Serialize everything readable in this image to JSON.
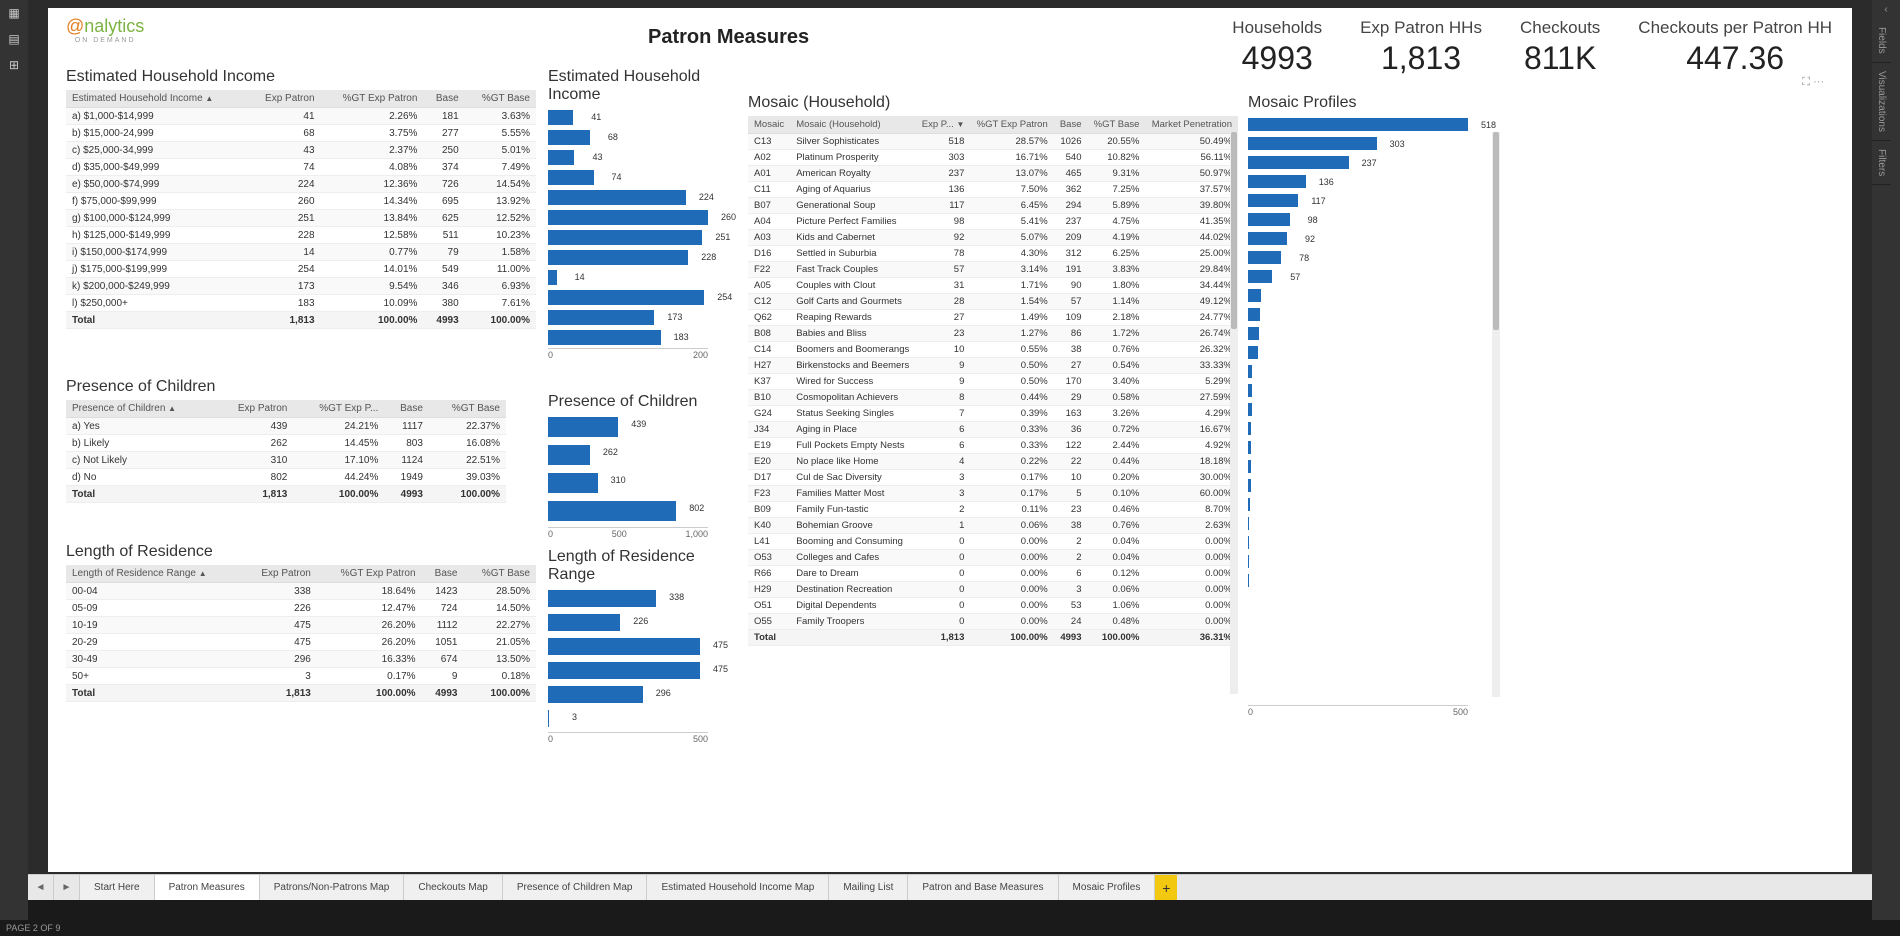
{
  "brand": {
    "a": "@",
    "name": "nalytics",
    "sub": "ON DEMAND"
  },
  "title": "Patron Measures",
  "kpis": [
    {
      "l": "Households",
      "v": "4993"
    },
    {
      "l": "Exp Patron HHs",
      "v": "1,813"
    },
    {
      "l": "Checkouts",
      "v": "811K"
    },
    {
      "l": "Checkouts per Patron HH",
      "v": "447.36"
    }
  ],
  "income": {
    "title": "Estimated Household Income",
    "cols": [
      "Estimated Household Income",
      "Exp Patron",
      "%GT Exp Patron",
      "Base",
      "%GT Base"
    ],
    "rows": [
      [
        "a) $1,000-$14,999",
        "41",
        "2.26%",
        "181",
        "3.63%"
      ],
      [
        "b) $15,000-24,999",
        "68",
        "3.75%",
        "277",
        "5.55%"
      ],
      [
        "c) $25,000-34,999",
        "43",
        "2.37%",
        "250",
        "5.01%"
      ],
      [
        "d) $35,000-$49,999",
        "74",
        "4.08%",
        "374",
        "7.49%"
      ],
      [
        "e) $50,000-$74,999",
        "224",
        "12.36%",
        "726",
        "14.54%"
      ],
      [
        "f) $75,000-$99,999",
        "260",
        "14.34%",
        "695",
        "13.92%"
      ],
      [
        "g) $100,000-$124,999",
        "251",
        "13.84%",
        "625",
        "12.52%"
      ],
      [
        "h) $125,000-$149,999",
        "228",
        "12.58%",
        "511",
        "10.23%"
      ],
      [
        "i) $150,000-$174,999",
        "14",
        "0.77%",
        "79",
        "1.58%"
      ],
      [
        "j) $175,000-$199,999",
        "254",
        "14.01%",
        "549",
        "11.00%"
      ],
      [
        "k) $200,000-$249,999",
        "173",
        "9.54%",
        "346",
        "6.93%"
      ],
      [
        "l) $250,000+",
        "183",
        "10.09%",
        "380",
        "7.61%"
      ]
    ],
    "total": [
      "Total",
      "1,813",
      "100.00%",
      "4993",
      "100.00%"
    ],
    "chart": {
      "max": 260,
      "axis": [
        "0",
        "200"
      ],
      "values": [
        41,
        68,
        43,
        74,
        224,
        260,
        251,
        228,
        14,
        254,
        173,
        183
      ]
    }
  },
  "children": {
    "title": "Presence of Children",
    "cols": [
      "Presence of Children",
      "Exp Patron",
      "%GT Exp P...",
      "Base",
      "%GT Base"
    ],
    "rows": [
      [
        "a) Yes",
        "439",
        "24.21%",
        "1117",
        "22.37%"
      ],
      [
        "b) Likely",
        "262",
        "14.45%",
        "803",
        "16.08%"
      ],
      [
        "c) Not Likely",
        "310",
        "17.10%",
        "1124",
        "22.51%"
      ],
      [
        "d) No",
        "802",
        "44.24%",
        "1949",
        "39.03%"
      ]
    ],
    "total": [
      "Total",
      "1,813",
      "100.00%",
      "4993",
      "100.00%"
    ],
    "chart": {
      "max": 1000,
      "axis": [
        "0",
        "500",
        "1,000"
      ],
      "values": [
        439,
        262,
        310,
        802
      ]
    }
  },
  "residence": {
    "title": "Length of Residence",
    "chartTitle": "Length of Residence Range",
    "cols": [
      "Length of Residence Range",
      "Exp Patron",
      "%GT Exp Patron",
      "Base",
      "%GT Base"
    ],
    "rows": [
      [
        "00-04",
        "338",
        "18.64%",
        "1423",
        "28.50%"
      ],
      [
        "05-09",
        "226",
        "12.47%",
        "724",
        "14.50%"
      ],
      [
        "10-19",
        "475",
        "26.20%",
        "1112",
        "22.27%"
      ],
      [
        "20-29",
        "475",
        "26.20%",
        "1051",
        "21.05%"
      ],
      [
        "30-49",
        "296",
        "16.33%",
        "674",
        "13.50%"
      ],
      [
        "50+",
        "3",
        "0.17%",
        "9",
        "0.18%"
      ]
    ],
    "total": [
      "Total",
      "1,813",
      "100.00%",
      "4993",
      "100.00%"
    ],
    "chart": {
      "max": 500,
      "axis": [
        "0",
        "500"
      ],
      "values": [
        338,
        226,
        475,
        475,
        296,
        3
      ]
    }
  },
  "mosaic": {
    "title": "Mosaic (Household)",
    "profilesTitle": "Mosaic Profiles",
    "cols": [
      "Mosaic",
      "Mosaic (Household)",
      "Exp P...",
      "%GT Exp Patron",
      "Base",
      "%GT Base",
      "Market Penetration"
    ],
    "rows": [
      [
        "C13",
        "Silver Sophisticates",
        "518",
        "28.57%",
        "1026",
        "20.55%",
        "50.49%"
      ],
      [
        "A02",
        "Platinum Prosperity",
        "303",
        "16.71%",
        "540",
        "10.82%",
        "56.11%"
      ],
      [
        "A01",
        "American Royalty",
        "237",
        "13.07%",
        "465",
        "9.31%",
        "50.97%"
      ],
      [
        "C11",
        "Aging of Aquarius",
        "136",
        "7.50%",
        "362",
        "7.25%",
        "37.57%"
      ],
      [
        "B07",
        "Generational Soup",
        "117",
        "6.45%",
        "294",
        "5.89%",
        "39.80%"
      ],
      [
        "A04",
        "Picture Perfect Families",
        "98",
        "5.41%",
        "237",
        "4.75%",
        "41.35%"
      ],
      [
        "A03",
        "Kids and Cabernet",
        "92",
        "5.07%",
        "209",
        "4.19%",
        "44.02%"
      ],
      [
        "D16",
        "Settled in Suburbia",
        "78",
        "4.30%",
        "312",
        "6.25%",
        "25.00%"
      ],
      [
        "F22",
        "Fast Track Couples",
        "57",
        "3.14%",
        "191",
        "3.83%",
        "29.84%"
      ],
      [
        "A05",
        "Couples with Clout",
        "31",
        "1.71%",
        "90",
        "1.80%",
        "34.44%"
      ],
      [
        "C12",
        "Golf Carts and Gourmets",
        "28",
        "1.54%",
        "57",
        "1.14%",
        "49.12%"
      ],
      [
        "Q62",
        "Reaping Rewards",
        "27",
        "1.49%",
        "109",
        "2.18%",
        "24.77%"
      ],
      [
        "B08",
        "Babies and Bliss",
        "23",
        "1.27%",
        "86",
        "1.72%",
        "26.74%"
      ],
      [
        "C14",
        "Boomers and Boomerangs",
        "10",
        "0.55%",
        "38",
        "0.76%",
        "26.32%"
      ],
      [
        "H27",
        "Birkenstocks and Beemers",
        "9",
        "0.50%",
        "27",
        "0.54%",
        "33.33%"
      ],
      [
        "K37",
        "Wired for Success",
        "9",
        "0.50%",
        "170",
        "3.40%",
        "5.29%"
      ],
      [
        "B10",
        "Cosmopolitan Achievers",
        "8",
        "0.44%",
        "29",
        "0.58%",
        "27.59%"
      ],
      [
        "G24",
        "Status Seeking Singles",
        "7",
        "0.39%",
        "163",
        "3.26%",
        "4.29%"
      ],
      [
        "J34",
        "Aging in Place",
        "6",
        "0.33%",
        "36",
        "0.72%",
        "16.67%"
      ],
      [
        "E19",
        "Full Pockets  Empty Nests",
        "6",
        "0.33%",
        "122",
        "2.44%",
        "4.92%"
      ],
      [
        "E20",
        "No place like Home",
        "4",
        "0.22%",
        "22",
        "0.44%",
        "18.18%"
      ],
      [
        "D17",
        "Cul de Sac Diversity",
        "3",
        "0.17%",
        "10",
        "0.20%",
        "30.00%"
      ],
      [
        "F23",
        "Families Matter Most",
        "3",
        "0.17%",
        "5",
        "0.10%",
        "60.00%"
      ],
      [
        "B09",
        "Family Fun-tastic",
        "2",
        "0.11%",
        "23",
        "0.46%",
        "8.70%"
      ],
      [
        "K40",
        "Bohemian Groove",
        "1",
        "0.06%",
        "38",
        "0.76%",
        "2.63%"
      ],
      [
        "L41",
        "Booming and Consuming",
        "0",
        "0.00%",
        "2",
        "0.04%",
        "0.00%"
      ],
      [
        "O53",
        "Colleges and Cafes",
        "0",
        "0.00%",
        "2",
        "0.04%",
        "0.00%"
      ],
      [
        "R66",
        "Dare to Dream",
        "0",
        "0.00%",
        "6",
        "0.12%",
        "0.00%"
      ],
      [
        "H29",
        "Destination Recreation",
        "0",
        "0.00%",
        "3",
        "0.06%",
        "0.00%"
      ],
      [
        "O51",
        "Digital Dependents",
        "0",
        "0.00%",
        "53",
        "1.06%",
        "0.00%"
      ],
      [
        "O55",
        "Family Troopers",
        "0",
        "0.00%",
        "24",
        "0.48%",
        "0.00%"
      ]
    ],
    "total": [
      "Total",
      "",
      "1,813",
      "100.00%",
      "4993",
      "100.00%",
      "36.31%"
    ],
    "chart": {
      "max": 518,
      "axis": [
        "0",
        "500"
      ],
      "values": [
        518,
        303,
        237,
        136,
        117,
        98,
        92,
        78,
        57,
        31,
        28,
        27,
        23,
        10,
        9,
        9,
        8,
        7,
        6,
        6,
        4,
        3,
        3,
        2,
        1,
        0,
        0,
        0,
        0,
        0,
        0
      ],
      "labels": [
        "518",
        "303",
        "237",
        "136",
        "117",
        "98",
        "92",
        "78",
        "57"
      ]
    }
  },
  "tabs": {
    "items": [
      "Start Here",
      "Patron Measures",
      "Patrons/Non-Patrons Map",
      "Checkouts Map",
      "Presence of Children Map",
      "Estimated Household Income Map",
      "Mailing List",
      "Patron and Base Measures",
      "Mosaic Profiles"
    ],
    "active": 1,
    "add": "+"
  },
  "status": "PAGE 2 OF 9",
  "side": {
    "fields": "Fields",
    "viz": "Visualizations",
    "filters": "Filters",
    "chev": "‹"
  },
  "colors": {
    "bar": "#1f6bb8",
    "header": "#e8e8e8",
    "accent": "#f2c811"
  }
}
